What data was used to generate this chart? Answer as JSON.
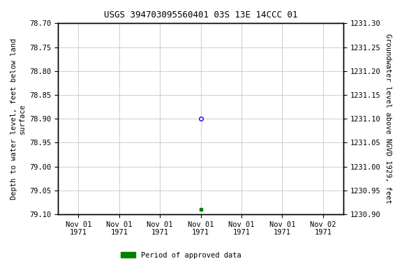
{
  "title": "USGS 394703095560401 03S 13E 14CCC 01",
  "title_fontsize": 9,
  "ylabel_left": "Depth to water level, feet below land\nsurface",
  "ylabel_right": "Groundwater level above NGVD 1929, feet",
  "ylim_left": [
    79.1,
    78.7
  ],
  "ylim_right": [
    1230.9,
    1231.3
  ],
  "y_ticks_left": [
    78.7,
    78.75,
    78.8,
    78.85,
    78.9,
    78.95,
    79.0,
    79.05,
    79.1
  ],
  "y_ticks_right": [
    1231.3,
    1231.25,
    1231.2,
    1231.15,
    1231.1,
    1231.05,
    1231.0,
    1230.95,
    1230.9
  ],
  "data_point_blue_x_hours": 72,
  "data_point_blue_y": 78.9,
  "data_point_green_x_hours": 72,
  "data_point_green_y": 79.09,
  "background_color": "#ffffff",
  "grid_color": "#bbbbbb",
  "legend_label": "Period of approved data",
  "legend_color": "#008000",
  "x_tick_hours": [
    0,
    24,
    48,
    72,
    96,
    120,
    144
  ],
  "x_tick_labels": [
    "Nov 01\n1971",
    "Nov 01\n1971",
    "Nov 01\n1971",
    "Nov 01\n1971",
    "Nov 01\n1971",
    "Nov 01\n1971",
    "Nov 02\n1971"
  ],
  "font_family": "monospace",
  "tick_fontsize": 7.5,
  "ylabel_fontsize": 7.5
}
